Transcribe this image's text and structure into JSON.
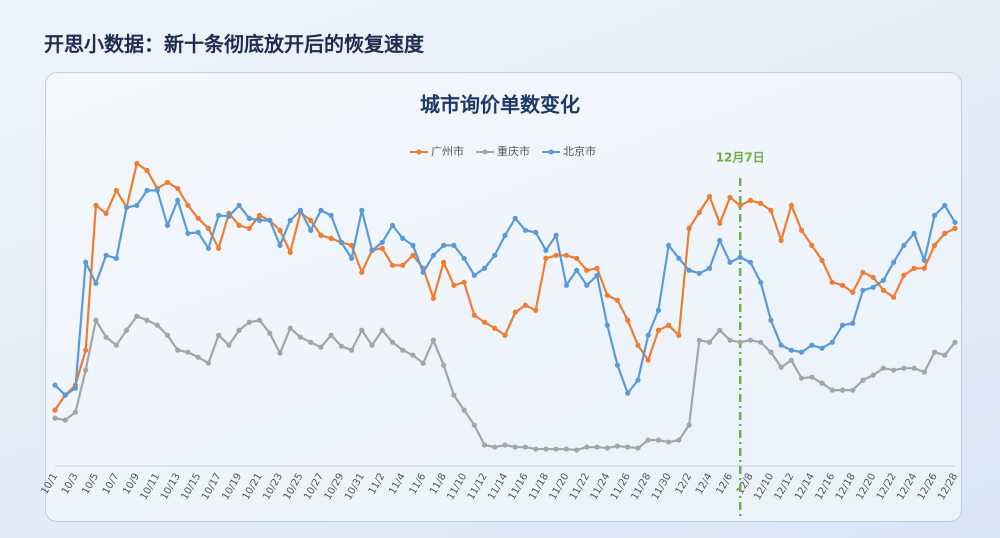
{
  "header": {
    "title": "开思小数据：新十条彻底放开后的恢复速度"
  },
  "chart_data": {
    "type": "line",
    "title": "城市询价单数变化",
    "categories": [
      "10/1",
      null,
      "10/3",
      null,
      "10/5",
      null,
      "10/7",
      null,
      "10/9",
      null,
      "10/11",
      null,
      "10/13",
      null,
      "10/15",
      null,
      "10/17",
      null,
      "10/19",
      null,
      "10/21",
      null,
      "10/23",
      null,
      "10/25",
      null,
      "10/27",
      null,
      "10/29",
      null,
      "10/31",
      null,
      "11/2",
      null,
      "11/4",
      null,
      "11/6",
      null,
      "11/8",
      null,
      "11/10",
      null,
      "11/12",
      null,
      "11/14",
      null,
      "11/16",
      null,
      "11/18",
      null,
      "11/20",
      null,
      "11/22",
      null,
      "11/24",
      null,
      "11/26",
      null,
      "11/28",
      null,
      "11/30",
      null,
      "12/2",
      null,
      "12/4",
      null,
      "12/6",
      null,
      "12/8",
      null,
      "12/10",
      null,
      "12/12",
      null,
      "12/14",
      null,
      "12/16",
      null,
      "12/18",
      null,
      "12/20",
      null,
      "12/22",
      null,
      "12/24",
      null,
      "12/26",
      null,
      "12/28"
    ],
    "series": [
      {
        "name": "广州市",
        "color": "#ed7d31",
        "values": [
          90,
          105,
          115,
          150,
          295,
          287,
          310,
          293,
          337,
          330,
          312,
          318,
          312,
          295,
          282,
          272,
          252,
          287,
          275,
          272,
          285,
          280,
          270,
          248,
          288,
          280,
          265,
          262,
          258,
          255,
          228,
          250,
          252,
          235,
          235,
          245,
          232,
          202,
          238,
          215,
          218,
          185,
          178,
          172,
          165,
          188,
          195,
          190,
          242,
          245,
          245,
          242,
          230,
          232,
          205,
          200,
          180,
          155,
          140,
          170,
          175,
          165,
          272,
          288,
          304,
          277,
          303,
          295,
          300,
          297,
          290,
          260,
          295,
          270,
          255,
          240,
          218,
          215,
          208,
          228,
          223,
          210,
          203,
          225,
          232,
          232,
          255,
          267,
          272
        ]
      },
      {
        "name": "重庆市",
        "color": "#a5a5a5",
        "values": [
          82,
          80,
          88,
          130,
          180,
          163,
          155,
          170,
          184,
          180,
          175,
          165,
          150,
          148,
          143,
          137,
          165,
          155,
          170,
          178,
          180,
          167,
          147,
          172,
          163,
          158,
          153,
          165,
          154,
          150,
          170,
          155,
          170,
          158,
          150,
          145,
          137,
          160,
          135,
          105,
          90,
          75,
          55,
          53,
          55,
          53,
          53,
          51,
          51,
          51,
          51,
          50,
          53,
          53,
          52,
          54,
          53,
          52,
          60,
          60,
          58,
          60,
          75,
          160,
          158,
          170,
          160,
          158,
          160,
          158,
          148,
          133,
          140,
          122,
          123,
          117,
          110,
          110,
          110,
          120,
          125,
          132,
          130,
          132,
          132,
          128,
          148,
          145,
          158
        ]
      },
      {
        "name": "北京市",
        "color": "#5b9bd5",
        "values": [
          115,
          105,
          112,
          238,
          217,
          245,
          242,
          293,
          295,
          310,
          310,
          275,
          300,
          267,
          268,
          252,
          285,
          284,
          295,
          282,
          280,
          280,
          255,
          280,
          290,
          270,
          290,
          285,
          258,
          242,
          290,
          250,
          258,
          275,
          262,
          255,
          228,
          245,
          255,
          255,
          242,
          225,
          232,
          245,
          265,
          282,
          270,
          268,
          250,
          265,
          215,
          230,
          215,
          225,
          175,
          135,
          107,
          120,
          165,
          190,
          255,
          242,
          230,
          227,
          232,
          260,
          238,
          243,
          238,
          218,
          180,
          155,
          150,
          148,
          155,
          152,
          158,
          175,
          177,
          210,
          213,
          220,
          238,
          255,
          267,
          240,
          285,
          295,
          278
        ]
      }
    ],
    "annotations": [
      {
        "text": "12月7日",
        "x": 67,
        "color": "#70ad47"
      }
    ]
  }
}
